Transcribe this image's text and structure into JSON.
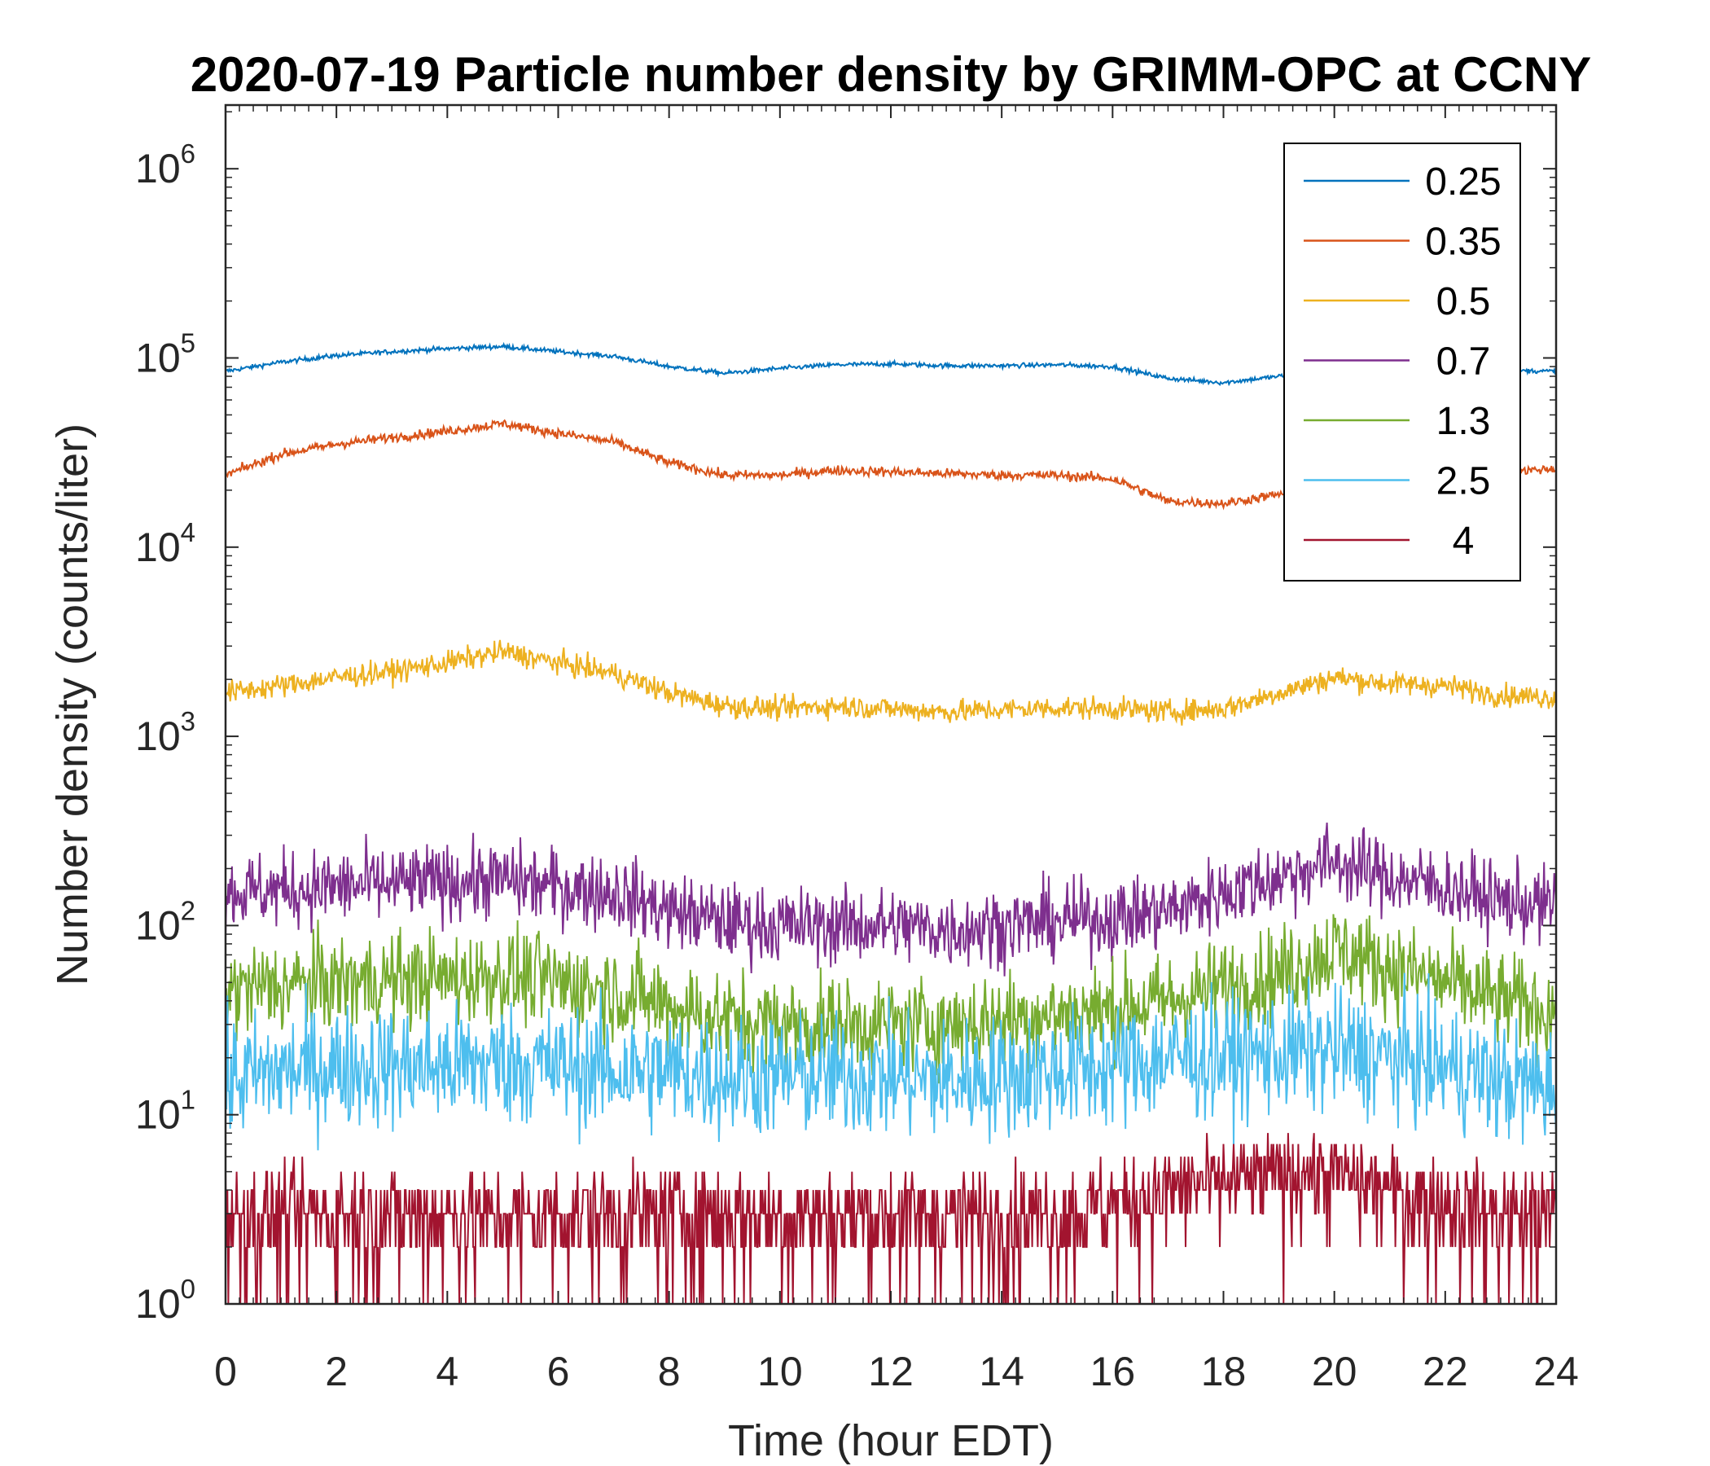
{
  "chart_data": {
    "type": "line",
    "title": "2020-07-19 Particle number density by GRIMM-OPC at CCNY",
    "xlabel": "Time (hour EDT)",
    "ylabel": "Number density (counts/liter)",
    "xlim": [
      0,
      24
    ],
    "ylim": [
      1,
      2000000
    ],
    "yscale": "log",
    "x_ticks": [
      0,
      2,
      4,
      6,
      8,
      10,
      12,
      14,
      16,
      18,
      20,
      22,
      24
    ],
    "x_tick_labels": [
      "0",
      "2",
      "4",
      "6",
      "8",
      "10",
      "12",
      "14",
      "16",
      "18",
      "20",
      "22",
      "24"
    ],
    "y_ticks": [
      1,
      10,
      100,
      1000,
      10000,
      100000,
      1000000
    ],
    "y_tick_labels": [
      {
        "base": "10",
        "exp": "0"
      },
      {
        "base": "10",
        "exp": "1"
      },
      {
        "base": "10",
        "exp": "2"
      },
      {
        "base": "10",
        "exp": "3"
      },
      {
        "base": "10",
        "exp": "4"
      },
      {
        "base": "10",
        "exp": "5"
      },
      {
        "base": "10",
        "exp": "6"
      }
    ],
    "legend_position": "top-right",
    "x": [
      0,
      1,
      2,
      3,
      4,
      5,
      6,
      7,
      8,
      9,
      10,
      11,
      12,
      13,
      14,
      15,
      16,
      17,
      18,
      19,
      20,
      21,
      22,
      23,
      24
    ],
    "series": [
      {
        "name": "0.25",
        "color": "#0072BD",
        "noise": 0.012,
        "values": [
          85000,
          95000,
          103000,
          108000,
          112000,
          115000,
          108000,
          102000,
          90000,
          83000,
          88000,
          92000,
          93000,
          91000,
          91000,
          92000,
          90000,
          78000,
          74000,
          80000,
          85000,
          87000,
          86000,
          86000,
          85000
        ]
      },
      {
        "name": "0.35",
        "color": "#D95319",
        "noise": 0.025,
        "values": [
          24000,
          31000,
          35000,
          38000,
          41000,
          45000,
          40000,
          36000,
          28000,
          24000,
          24000,
          25500,
          25000,
          24500,
          24000,
          24000,
          23000,
          17500,
          17000,
          19000,
          22000,
          23500,
          24000,
          25000,
          26000
        ]
      },
      {
        "name": "0.5",
        "color": "#EDB120",
        "noise": 0.06,
        "values": [
          1700,
          1850,
          2050,
          2200,
          2450,
          2800,
          2450,
          2150,
          1700,
          1450,
          1400,
          1450,
          1400,
          1350,
          1380,
          1420,
          1400,
          1350,
          1400,
          1700,
          2050,
          1900,
          1850,
          1650,
          1600
        ]
      },
      {
        "name": "0.7",
        "color": "#7E2F8E",
        "noise": 0.2,
        "values": [
          150,
          155,
          160,
          165,
          170,
          175,
          160,
          150,
          120,
          105,
          100,
          100,
          100,
          95,
          100,
          105,
          110,
          120,
          150,
          180,
          220,
          180,
          160,
          135,
          125
        ]
      },
      {
        "name": "1.3",
        "color": "#77AC30",
        "noise": 0.25,
        "values": [
          45,
          48,
          50,
          52,
          52,
          55,
          50,
          45,
          38,
          32,
          30,
          30,
          30,
          30,
          32,
          34,
          36,
          40,
          48,
          55,
          75,
          60,
          50,
          40,
          35
        ]
      },
      {
        "name": "2.5",
        "color": "#4DBEEE",
        "noise": 0.32,
        "values": [
          15,
          17,
          18,
          18,
          18,
          19,
          18,
          17,
          17,
          16,
          16,
          16,
          16,
          15,
          16,
          17,
          18,
          20,
          20,
          21,
          22,
          20,
          18,
          15,
          14
        ]
      },
      {
        "name": "4",
        "color": "#A2142F",
        "noise": 0.45,
        "values": [
          3,
          3,
          3,
          3,
          3,
          3,
          3,
          3,
          3,
          3,
          3,
          3,
          3,
          3,
          3,
          3,
          3.5,
          4,
          4.5,
          5,
          5,
          4,
          3.5,
          3,
          3
        ]
      }
    ]
  }
}
